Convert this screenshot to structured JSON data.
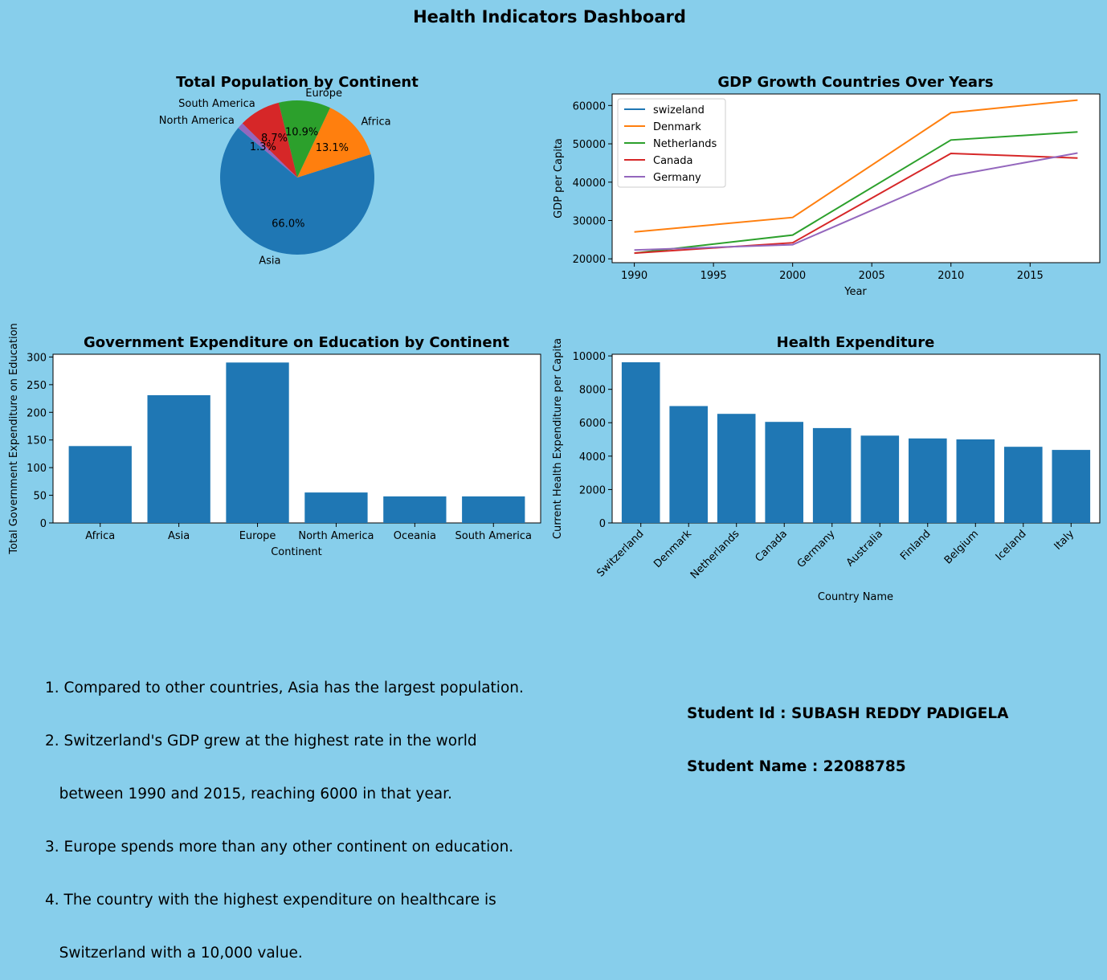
{
  "dashboard_title": "Health Indicators Dashboard",
  "colors": {
    "background": "#87CEEB",
    "plot_bg": "#FFFFFF",
    "blue": "#1F77B4",
    "orange": "#FF7F0E",
    "green": "#2CA02C",
    "red": "#D62728",
    "purple": "#9467BD"
  },
  "chart_data": [
    {
      "type": "pie",
      "title": "Total Population by Continent",
      "slices": [
        {
          "label": "Asia",
          "value": 66.0,
          "pct": "66.0%",
          "color": "#1F77B4"
        },
        {
          "label": "Africa",
          "value": 13.1,
          "pct": "13.1%",
          "color": "#FF7F0E"
        },
        {
          "label": "Europe",
          "value": 10.9,
          "pct": "10.9%",
          "color": "#2CA02C"
        },
        {
          "label": "South America",
          "value": 8.7,
          "pct": "8.7%",
          "color": "#D62728"
        },
        {
          "label": "North America",
          "value": 1.3,
          "pct": "1.3%",
          "color": "#9467BD"
        }
      ]
    },
    {
      "type": "line",
      "title": "GDP Growth Countries Over Years",
      "xlabel": "Year",
      "ylabel": "GDP per Capita",
      "xlim": [
        1988.6,
        2019.4
      ],
      "ylim": [
        19000,
        63000
      ],
      "xticks": [
        1990,
        1995,
        2000,
        2005,
        2010,
        2015
      ],
      "yticks": [
        20000,
        30000,
        40000,
        50000,
        60000
      ],
      "legend": "upper-left",
      "x": [
        1990,
        2000,
        2010,
        2018
      ],
      "series": [
        {
          "name": "swizeland",
          "color": "#1F77B4",
          "values": [
            null,
            null,
            null,
            null
          ]
        },
        {
          "name": "Denmark",
          "color": "#FF7F0E",
          "values": [
            27000,
            30800,
            58100,
            61400
          ]
        },
        {
          "name": "Netherlands",
          "color": "#2CA02C",
          "values": [
            21500,
            26200,
            51000,
            53100
          ]
        },
        {
          "name": "Canada",
          "color": "#D62728",
          "values": [
            21500,
            24200,
            47500,
            46300
          ]
        },
        {
          "name": "Germany",
          "color": "#9467BD",
          "values": [
            22300,
            23700,
            41600,
            47600
          ]
        }
      ]
    },
    {
      "type": "bar",
      "title": "Government Expenditure on Education by Continent",
      "xlabel": "Continent",
      "ylabel": "Total Government Expenditure on Education",
      "ylim": [
        0,
        305
      ],
      "yticks": [
        0,
        50,
        100,
        150,
        200,
        250,
        300
      ],
      "color": "#1F77B4",
      "categories": [
        "Africa",
        "Asia",
        "Europe",
        "North America",
        "Oceania",
        "South America"
      ],
      "values": [
        139,
        231,
        290,
        55,
        48,
        48
      ]
    },
    {
      "type": "bar",
      "title": "Health Expenditure",
      "xlabel": "Country Name",
      "ylabel": "Current Health Expenditure per Capita",
      "ylim": [
        0,
        10100
      ],
      "yticks": [
        0,
        2000,
        4000,
        6000,
        8000,
        10000
      ],
      "color": "#1F77B4",
      "categories": [
        "Switzerland",
        "Denmark",
        "Netherlands",
        "Canada",
        "Germany",
        "Australia",
        "Finland",
        "Belgium",
        "Iceland",
        "Italy"
      ],
      "values": [
        9620,
        7000,
        6530,
        6050,
        5680,
        5230,
        5060,
        5000,
        4560,
        4370
      ]
    }
  ],
  "notes": [
    "1. Compared to other countries, Asia has the largest population.",
    "2. Switzerland's GDP grew at the highest rate in the world",
    "   between 1990 and 2015, reaching 6000 in that year.",
    "3. Europe spends more than any other continent on education.",
    "4. The country with the highest expenditure on healthcare is",
    "   Switzerland with a 10,000 value."
  ],
  "student": {
    "id_line": "Student Id : SUBASH REDDY PADIGELA",
    "name_line": "Student Name : 22088785"
  }
}
